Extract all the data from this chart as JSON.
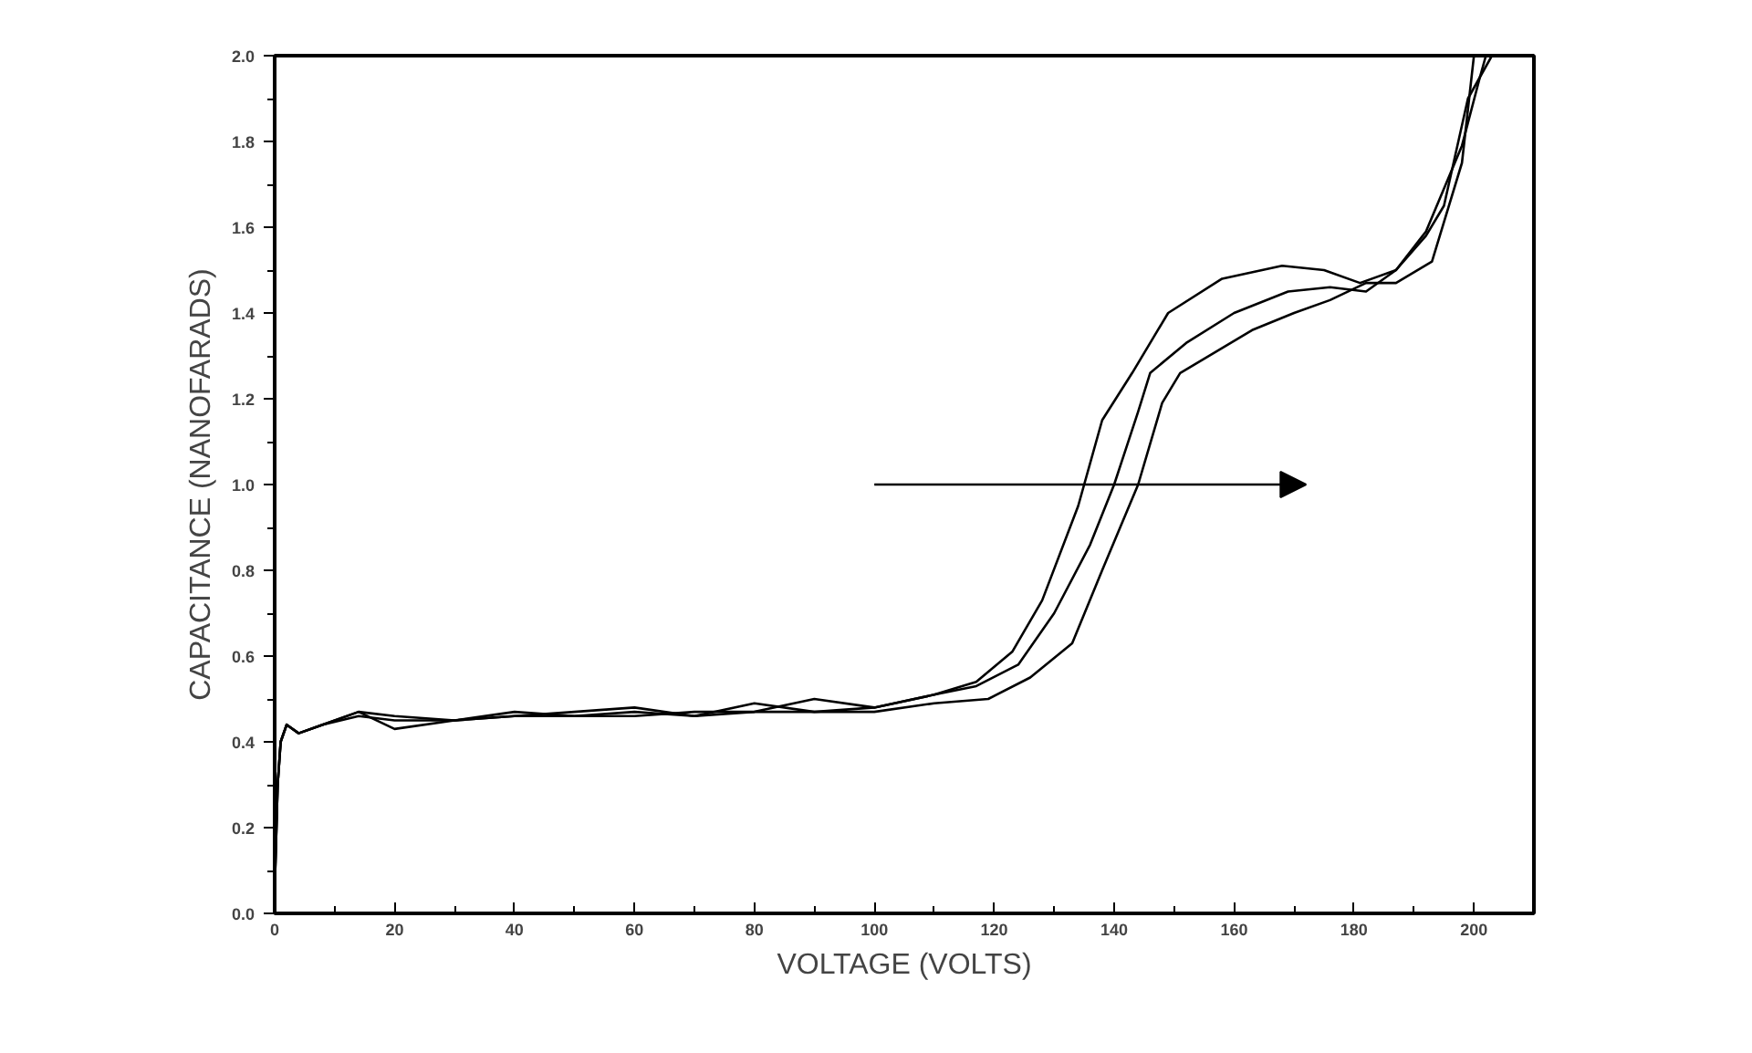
{
  "chart_data": {
    "type": "line",
    "xlabel": "VOLTAGE (VOLTS)",
    "ylabel": "CAPACITANCE (NANOFARADS)",
    "xlim": [
      0,
      210
    ],
    "ylim": [
      0,
      2.0
    ],
    "xticks": [
      0,
      20,
      40,
      60,
      80,
      100,
      120,
      140,
      160,
      180,
      200
    ],
    "yticks": [
      {
        "value": 0,
        "label": "0.0"
      },
      {
        "value": 0.2,
        "label": "0.2"
      },
      {
        "value": 0.4,
        "label": "0.4"
      },
      {
        "value": 0.6,
        "label": "0.6"
      },
      {
        "value": 0.8,
        "label": "0.8"
      },
      {
        "value": 1.0,
        "label": "1.0"
      },
      {
        "value": 1.2,
        "label": "1.2"
      },
      {
        "value": 1.4,
        "label": "1.4"
      },
      {
        "value": 1.6,
        "label": "1.6"
      },
      {
        "value": 1.8,
        "label": "1.8"
      },
      {
        "value": 2.0,
        "label": "2.0"
      }
    ],
    "grid": false,
    "marker": "none",
    "line_style": "solid",
    "series": [
      {
        "color": "#000000",
        "x": [
          0,
          0.5,
          1,
          2,
          4,
          8,
          14,
          20,
          30,
          40,
          50,
          60,
          70,
          80,
          90,
          100,
          110,
          117,
          123,
          128,
          134,
          138,
          143,
          149,
          158,
          168,
          175,
          181,
          187,
          192,
          195,
          199,
          201,
          202
        ],
        "values": [
          0.05,
          0.3,
          0.4,
          0.44,
          0.42,
          0.44,
          0.47,
          0.46,
          0.45,
          0.46,
          0.47,
          0.48,
          0.46,
          0.49,
          0.47,
          0.48,
          0.51,
          0.54,
          0.61,
          0.73,
          0.95,
          1.15,
          1.26,
          1.4,
          1.48,
          1.51,
          1.5,
          1.47,
          1.5,
          1.58,
          1.65,
          1.9,
          1.95,
          2.0
        ]
      },
      {
        "color": "#000000",
        "x": [
          0,
          0.5,
          1,
          2,
          4,
          8,
          14,
          20,
          30,
          40,
          50,
          60,
          70,
          80,
          90,
          100,
          110,
          117,
          124,
          130,
          136,
          140,
          144,
          146,
          152,
          160,
          169,
          176,
          182,
          187,
          192,
          198,
          201,
          203
        ],
        "values": [
          0.05,
          0.3,
          0.4,
          0.44,
          0.42,
          0.44,
          0.47,
          0.43,
          0.45,
          0.47,
          0.46,
          0.47,
          0.46,
          0.47,
          0.5,
          0.48,
          0.51,
          0.53,
          0.58,
          0.7,
          0.86,
          1.0,
          1.17,
          1.26,
          1.33,
          1.4,
          1.45,
          1.46,
          1.45,
          1.5,
          1.59,
          1.79,
          1.95,
          2.0
        ]
      },
      {
        "color": "#000000",
        "x": [
          0,
          0.5,
          1,
          2,
          4,
          8,
          14,
          20,
          30,
          40,
          50,
          60,
          70,
          80,
          90,
          100,
          110,
          119,
          126,
          133,
          138,
          144,
          148,
          151,
          157,
          163,
          170,
          176,
          182,
          187,
          193,
          198,
          200,
          203
        ],
        "values": [
          0.05,
          0.3,
          0.4,
          0.44,
          0.42,
          0.44,
          0.46,
          0.45,
          0.45,
          0.46,
          0.46,
          0.46,
          0.47,
          0.47,
          0.47,
          0.47,
          0.49,
          0.5,
          0.55,
          0.63,
          0.8,
          1.0,
          1.19,
          1.26,
          1.31,
          1.36,
          1.4,
          1.43,
          1.47,
          1.47,
          1.52,
          1.75,
          2.0,
          2.0
        ]
      }
    ]
  }
}
